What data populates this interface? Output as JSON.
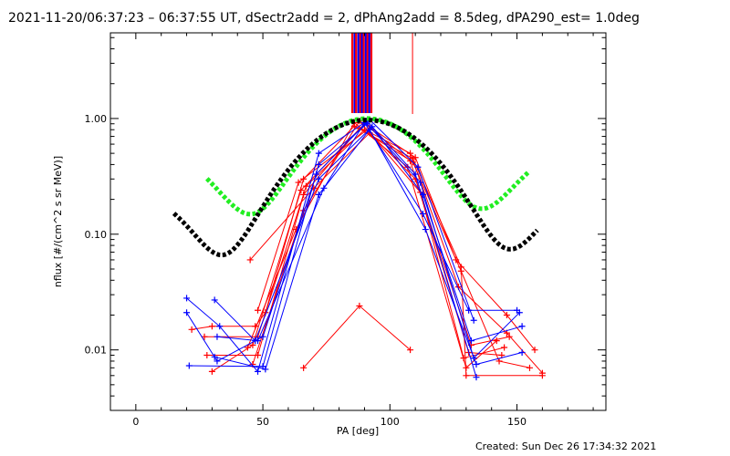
{
  "chart_data": {
    "type": "scatter",
    "title": "2021-11-20/06:37:23 – 06:37:55 UT, dSectr2add = 2, dPhAng2add = 8.5deg, dPA290_est=  1.0deg",
    "xlabel": "PA [deg]",
    "ylabel": "nflux [#/(cm^2 s sr MeV)]",
    "xlim": [
      -10,
      185
    ],
    "ylim": [
      0.003,
      5.5
    ],
    "yscale": "log",
    "xticks": [
      {
        "value": 0,
        "label": "0"
      },
      {
        "value": 50,
        "label": "50"
      },
      {
        "value": 100,
        "label": "100"
      },
      {
        "value": 150,
        "label": "150"
      }
    ],
    "yticks": [
      {
        "value": 0.01,
        "label": "0.01"
      },
      {
        "value": 0.1,
        "label": "0.10"
      },
      {
        "value": 1.0,
        "label": "1.00"
      }
    ],
    "grid": false,
    "series": [
      {
        "color": "#ff0000",
        "marker": "plus",
        "values": [
          [
            22,
            0.015
          ],
          [
            30,
            0.016
          ],
          [
            47,
            0.016
          ],
          [
            51,
            0.021
          ],
          [
            66,
            0.3
          ],
          [
            86,
            0.86
          ],
          [
            109,
            0.45
          ],
          [
            128,
            0.052
          ],
          [
            130,
            0.006
          ],
          [
            160,
            0.006
          ]
        ]
      },
      {
        "color": "#ff0000",
        "marker": "plus",
        "values": [
          [
            27,
            0.013
          ],
          [
            48,
            0.013
          ],
          [
            66,
            0.22
          ],
          [
            88,
            0.82
          ],
          [
            109,
            0.42
          ],
          [
            128,
            0.048
          ],
          [
            143,
            0.008
          ],
          [
            155,
            0.007
          ]
        ]
      },
      {
        "color": "#ff0000",
        "marker": "plus",
        "values": [
          [
            28,
            0.009
          ],
          [
            48,
            0.009
          ],
          [
            67,
            0.26
          ],
          [
            90,
            0.8
          ],
          [
            108,
            0.5
          ],
          [
            127,
            0.035
          ],
          [
            146,
            0.014
          ],
          [
            160,
            0.0063
          ]
        ]
      },
      {
        "color": "#ff0000",
        "marker": "plus",
        "values": [
          [
            30,
            0.0065
          ],
          [
            46,
            0.011
          ],
          [
            65,
            0.24
          ],
          [
            90,
            0.9
          ],
          [
            110,
            0.46
          ],
          [
            126,
            0.06
          ],
          [
            146,
            0.02
          ],
          [
            157,
            0.01
          ]
        ]
      },
      {
        "color": "#ff0000",
        "marker": "plus",
        "values": [
          [
            44,
            0.0105
          ],
          [
            63,
            0.11
          ],
          [
            86,
            0.92
          ],
          [
            107,
            0.38
          ],
          [
            130,
            0.007
          ],
          [
            142,
            0.012
          ]
        ]
      },
      {
        "color": "#ff0000",
        "marker": "plus",
        "values": [
          [
            48,
            0.022
          ],
          [
            64,
            0.28
          ],
          [
            92,
            0.83
          ],
          [
            108,
            0.43
          ],
          [
            131,
            0.0095
          ],
          [
            144,
            0.009
          ]
        ]
      },
      {
        "color": "#ff0000",
        "marker": "plus",
        "values": [
          [
            46,
            0.0075
          ],
          [
            66,
            0.16
          ],
          [
            88,
            0.95
          ],
          [
            112,
            0.23
          ],
          [
            129,
            0.0085
          ],
          [
            145,
            0.0105
          ]
        ]
      },
      {
        "color": "#ff0000",
        "marker": "plus",
        "values": [
          [
            45,
            0.06
          ],
          [
            70,
            0.25
          ],
          [
            92,
            0.75
          ],
          [
            110,
            0.3
          ],
          [
            132,
            0.011
          ],
          [
            147,
            0.013
          ]
        ]
      },
      {
        "color": "#ff0000",
        "marker": "plus",
        "values": [
          [
            66,
            0.007
          ],
          [
            88,
            0.024
          ],
          [
            108,
            0.01
          ]
        ]
      },
      {
        "color": "#0000ff",
        "marker": "plus",
        "values": [
          [
            20,
            0.028
          ],
          [
            33,
            0.016
          ],
          [
            48,
            0.0065
          ],
          [
            72,
            0.5
          ],
          [
            91,
            0.95
          ],
          [
            110,
            0.33
          ],
          [
            134,
            0.0058
          ]
        ]
      },
      {
        "color": "#0000ff",
        "marker": "plus",
        "values": [
          [
            21,
            0.0073
          ],
          [
            50,
            0.0072
          ],
          [
            72,
            0.4
          ],
          [
            91,
            0.9
          ],
          [
            112,
            0.28
          ],
          [
            133,
            0.0085
          ],
          [
            151,
            0.021
          ]
        ]
      },
      {
        "color": "#0000ff",
        "marker": "plus",
        "values": [
          [
            31,
            0.027
          ],
          [
            47,
            0.012
          ],
          [
            72,
            0.3
          ],
          [
            93,
            0.85
          ],
          [
            113,
            0.22
          ],
          [
            132,
            0.012
          ],
          [
            152,
            0.016
          ]
        ]
      },
      {
        "color": "#0000ff",
        "marker": "plus",
        "values": [
          [
            20,
            0.021
          ],
          [
            32,
            0.008
          ],
          [
            50,
            0.013
          ],
          [
            71,
            0.33
          ],
          [
            92,
            0.98
          ],
          [
            111,
            0.38
          ],
          [
            133,
            0.018
          ]
        ]
      },
      {
        "color": "#0000ff",
        "marker": "plus",
        "values": [
          [
            32,
            0.013
          ],
          [
            48,
            0.012
          ],
          [
            74,
            0.25
          ],
          [
            90,
            0.92
          ],
          [
            113,
            0.15
          ],
          [
            131,
            0.022
          ],
          [
            150,
            0.022
          ]
        ]
      },
      {
        "color": "#0000ff",
        "marker": "plus",
        "values": [
          [
            31,
            0.0087
          ],
          [
            51,
            0.0068
          ],
          [
            72,
            0.22
          ],
          [
            92,
            0.8
          ],
          [
            114,
            0.11
          ],
          [
            134,
            0.0075
          ],
          [
            152,
            0.0095
          ]
        ]
      }
    ],
    "fits": [
      {
        "color": "#22ee22",
        "style": "thick-dash",
        "center": 91,
        "peak": 1.0,
        "gaussian_width": 20,
        "cosine_amplitude": 0.07,
        "cosine_power": 6,
        "x_range": [
          28,
          155
        ]
      },
      {
        "color": "#000000",
        "style": "thick-dash",
        "center": 91,
        "peak": 0.97,
        "gaussian_width": 22,
        "cosine_amplitude": 0.0055,
        "cosine_power": 10,
        "x_range": [
          15,
          158
        ]
      }
    ],
    "vertical_lines": [
      {
        "color": "#ff0000",
        "x": 85.2
      },
      {
        "color": "#0000ff",
        "x": 86.1
      },
      {
        "color": "#ff0000",
        "x": 86.7
      },
      {
        "color": "#0000ff",
        "x": 87.6
      },
      {
        "color": "#ff0000",
        "x": 88.4
      },
      {
        "color": "#0000ff",
        "x": 89.0
      },
      {
        "color": "#ff0000",
        "x": 89.7
      },
      {
        "color": "#0000ff",
        "x": 90.5
      },
      {
        "color": "#ff0000",
        "x": 91.2
      },
      {
        "color": "#0000ff",
        "x": 91.9
      },
      {
        "color": "#ff0000",
        "x": 92.7
      },
      {
        "color": "#ff0000",
        "x": 108.9
      }
    ],
    "footer": "Created: Sun Dec 26 17:34:32 2021"
  }
}
